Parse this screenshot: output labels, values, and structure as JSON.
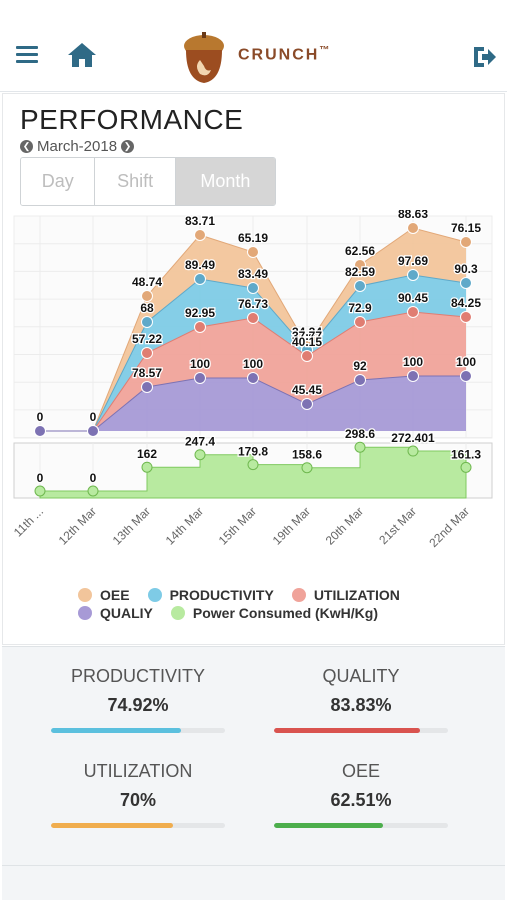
{
  "header": {
    "logo_text": "CRUNCH",
    "logo_tm": "™",
    "icons": [
      "menu-icon",
      "home-icon",
      "logout-icon"
    ]
  },
  "performance": {
    "title": "PERFORMANCE",
    "month": "March-2018",
    "tabs": [
      {
        "label": "Day",
        "selected": false
      },
      {
        "label": "Shift",
        "selected": false
      },
      {
        "label": "Month",
        "selected": true
      }
    ]
  },
  "chart_data": {
    "type": "area",
    "categories": [
      "11th ...",
      "12th Mar",
      "13th Mar",
      "14th Mar",
      "15th Mar",
      "19th Mar",
      "20th Mar",
      "21st Mar",
      "22nd Mar"
    ],
    "series": [
      {
        "name": "OEE",
        "color": "#f2c59b",
        "labels": [
          "0",
          "0",
          "48.74",
          "83.71",
          "65.19",
          "34.24",
          "62.56",
          "88.63",
          "76.15"
        ]
      },
      {
        "name": "PRODUCTIVITY",
        "color": "#7ecbe6",
        "labels": [
          "",
          "",
          "68",
          "89.49",
          "83.49",
          "37.77",
          "82.59",
          "97.69",
          "90.3"
        ]
      },
      {
        "name": "UTILIZATION",
        "color": "#f0a39a",
        "labels": [
          "",
          "",
          "57.22",
          "92.95",
          "76.73",
          "40.15",
          "72.9",
          "90.45",
          "84.25"
        ]
      },
      {
        "name": "QUALIY",
        "color": "#a79ad6",
        "labels": [
          "",
          "",
          "78.57",
          "100",
          "100",
          "45.45",
          "92",
          "100",
          "100"
        ]
      },
      {
        "name": "Power Consumed (KwH/Kg)",
        "color": "#b8eaa0",
        "values": [
          0,
          0,
          162,
          247.4,
          179.8,
          158.6,
          298.6,
          272.401,
          161.3
        ]
      }
    ],
    "legend": [
      "OEE",
      "PRODUCTIVITY",
      "UTILIZATION",
      "QUALIY",
      "Power Consumed (KwH/Kg)"
    ],
    "legend_position": "bottom"
  },
  "kpis": [
    {
      "label": "PRODUCTIVITY",
      "value": "74.92%",
      "fraction": 0.7492,
      "color": "#5bc0de"
    },
    {
      "label": "QUALITY",
      "value": "83.83%",
      "fraction": 0.8383,
      "color": "#d9534f"
    },
    {
      "label": "UTILIZATION",
      "value": "70%",
      "fraction": 0.7,
      "color": "#f0ad4e"
    },
    {
      "label": "OEE",
      "value": "62.51%",
      "fraction": 0.6251,
      "color": "#4cae4c"
    }
  ]
}
